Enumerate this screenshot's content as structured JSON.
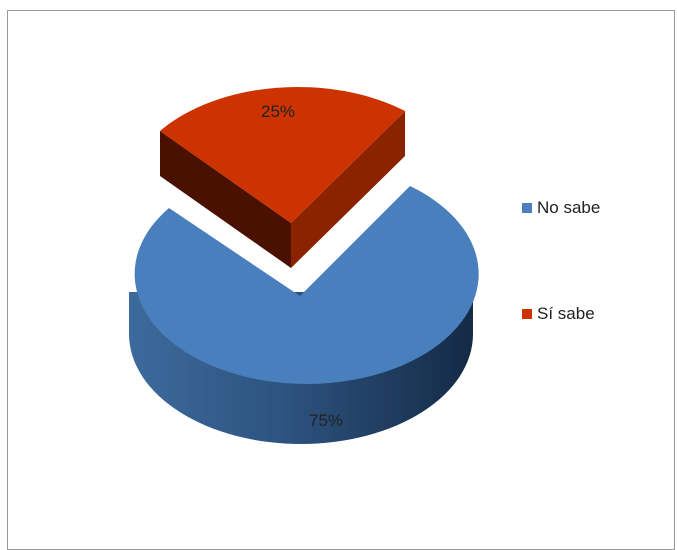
{
  "chart_data": {
    "type": "pie",
    "style": "3d-exploded",
    "title": "",
    "slices": [
      {
        "label": "No sabe",
        "value": 75,
        "data_label": "75%",
        "color": "#4a7fbd",
        "exploded": false
      },
      {
        "label": "Sí sabe",
        "value": 25,
        "data_label": "25%",
        "color": "#cc3300",
        "exploded": true
      }
    ],
    "legend_position": "right"
  }
}
